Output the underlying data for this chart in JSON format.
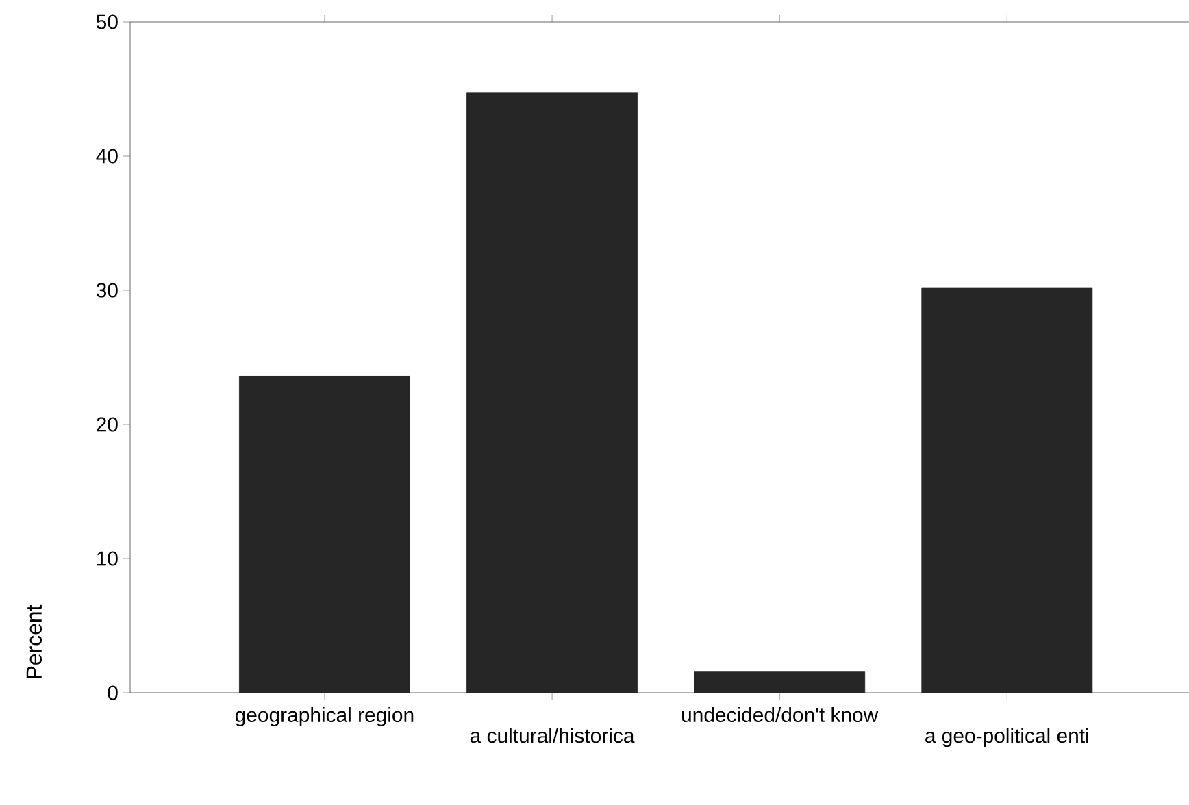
{
  "chart_data": {
    "type": "bar",
    "ylabel": "Percent",
    "categories": [
      "geographical region",
      "a cultural/historica",
      "undecided/don't know",
      "a geo-political enti"
    ],
    "values": [
      23.6,
      44.7,
      1.6,
      30.2
    ],
    "color": "#262626",
    "ylim": [
      0,
      50
    ],
    "yticks": [
      0,
      10,
      20,
      30,
      40,
      50
    ]
  }
}
